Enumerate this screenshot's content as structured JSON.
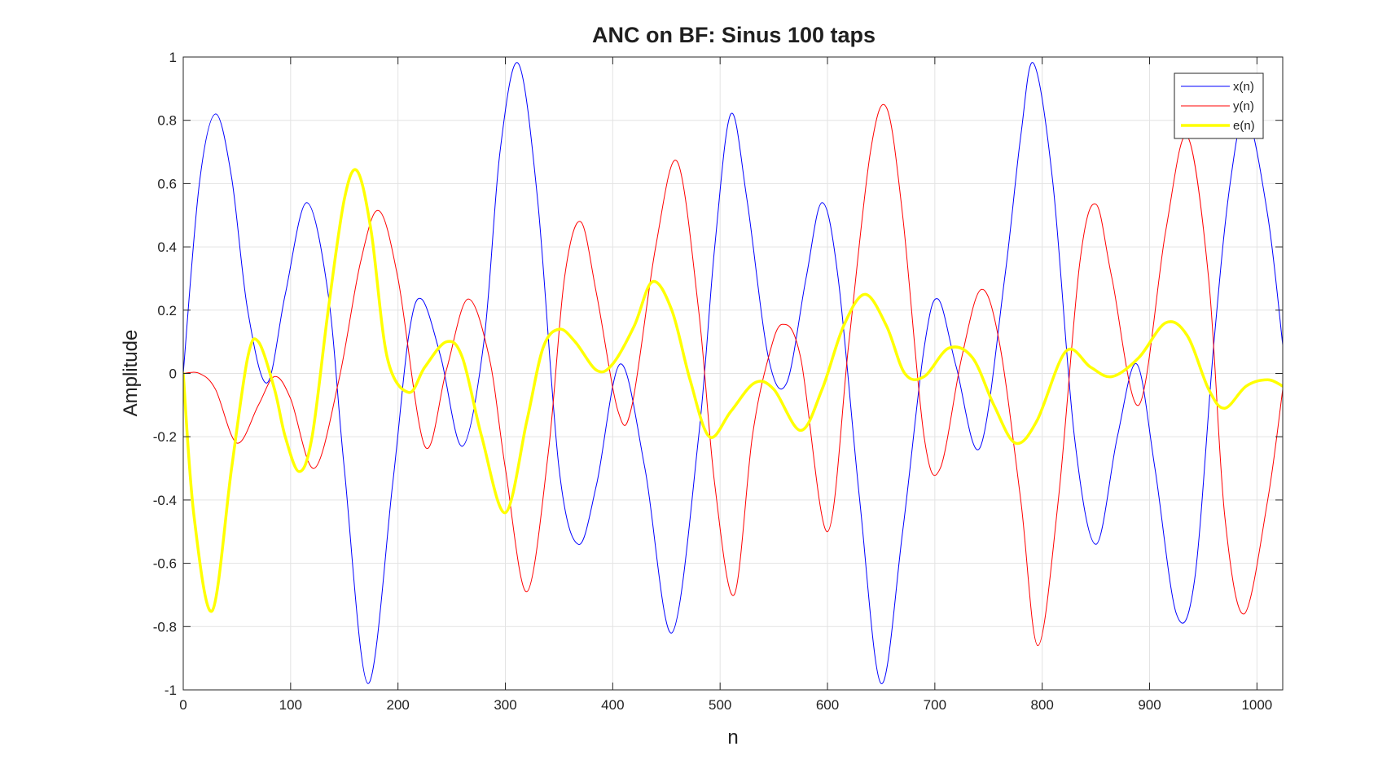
{
  "chart_data": {
    "type": "line",
    "title": "ANC on BF: Sinus 100 taps",
    "xlabel": "n",
    "ylabel": "Amplitude",
    "xlim": [
      0,
      1024
    ],
    "ylim": [
      -1,
      1
    ],
    "grid": true,
    "legend_position": "top-right",
    "x_ticks": [
      0,
      100,
      200,
      300,
      400,
      500,
      600,
      700,
      800,
      900,
      1000
    ],
    "y_ticks": [
      -1,
      -0.8,
      -0.6,
      -0.4,
      -0.2,
      0,
      0.2,
      0.4,
      0.6,
      0.8,
      1
    ],
    "x_tick_labels": [
      "0",
      "100",
      "200",
      "300",
      "400",
      "500",
      "600",
      "700",
      "800",
      "900",
      "1000"
    ],
    "y_tick_labels": [
      "-1",
      "-0.8",
      "-0.6",
      "-0.4",
      "-0.2",
      "0",
      "0.2",
      "0.4",
      "0.6",
      "0.8",
      "1"
    ],
    "series": [
      {
        "name": "x(n)",
        "color": "#0000ff",
        "line_width": 1,
        "x": [
          0,
          15,
          30,
          45,
          60,
          78,
          95,
          115,
          135,
          150,
          172,
          195,
          210,
          222,
          240,
          260,
          280,
          295,
          312,
          330,
          350,
          368,
          385,
          407,
          430,
          455,
          480,
          495,
          510,
          525,
          545,
          562,
          580,
          595,
          610,
          630,
          650,
          670,
          690,
          703,
          720,
          742,
          765,
          780,
          792,
          810,
          830,
          850,
          870,
          888,
          905,
          925,
          942,
          960,
          975,
          990,
          1010,
          1024
        ],
        "y": [
          0,
          0.6,
          0.82,
          0.62,
          0.2,
          -0.03,
          0.25,
          0.54,
          0.25,
          -0.3,
          -0.98,
          -0.35,
          0.12,
          0.235,
          0.05,
          -0.23,
          0.1,
          0.7,
          0.98,
          0.55,
          -0.3,
          -0.54,
          -0.35,
          0.03,
          -0.3,
          -0.82,
          -0.2,
          0.4,
          0.82,
          0.55,
          0.05,
          -0.03,
          0.3,
          0.54,
          0.3,
          -0.4,
          -0.98,
          -0.5,
          0.08,
          0.235,
          0.02,
          -0.235,
          0.3,
          0.75,
          0.98,
          0.6,
          -0.2,
          -0.54,
          -0.2,
          0.03,
          -0.3,
          -0.76,
          -0.65,
          0.1,
          0.6,
          0.82,
          0.5,
          0.09
        ]
      },
      {
        "name": "y(n)",
        "color": "#ff0000",
        "line_width": 1,
        "x": [
          0,
          15,
          30,
          50,
          70,
          85,
          100,
          122,
          145,
          165,
          182,
          200,
          225,
          245,
          265,
          285,
          300,
          320,
          340,
          355,
          370,
          385,
          405,
          418,
          440,
          460,
          480,
          495,
          513,
          530,
          545,
          558,
          575,
          600,
          620,
          640,
          655,
          670,
          690,
          705,
          725,
          743,
          760,
          780,
          796,
          815,
          835,
          850,
          865,
          890,
          915,
          935,
          955,
          970,
          988,
          1010,
          1024
        ],
        "y": [
          0,
          0,
          -0.05,
          -0.22,
          -0.1,
          -0.01,
          -0.08,
          -0.3,
          -0.02,
          0.35,
          0.515,
          0.3,
          -0.23,
          0.01,
          0.235,
          0.05,
          -0.3,
          -0.69,
          -0.25,
          0.3,
          0.48,
          0.25,
          -0.12,
          -0.1,
          0.4,
          0.67,
          0.2,
          -0.35,
          -0.7,
          -0.2,
          0.05,
          0.155,
          0.05,
          -0.5,
          0.1,
          0.7,
          0.84,
          0.5,
          -0.2,
          -0.3,
          0.05,
          0.265,
          0.1,
          -0.4,
          -0.86,
          -0.4,
          0.35,
          0.535,
          0.3,
          -0.1,
          0.45,
          0.75,
          0.3,
          -0.45,
          -0.76,
          -0.4,
          -0.05
        ]
      },
      {
        "name": "e(n)",
        "color": "#ffff00",
        "line_width": 3.5,
        "x": [
          0,
          10,
          27,
          45,
          60,
          70,
          85,
          95,
          108,
          120,
          135,
          150,
          162,
          175,
          190,
          210,
          225,
          245,
          260,
          278,
          300,
          320,
          335,
          350,
          365,
          385,
          400,
          420,
          437,
          455,
          472,
          490,
          510,
          532,
          550,
          575,
          595,
          615,
          635,
          655,
          672,
          690,
          713,
          735,
          755,
          775,
          795,
          822,
          845,
          865,
          890,
          915,
          935,
          955,
          970,
          990,
          1010,
          1024
        ],
        "y": [
          0,
          -0.45,
          -0.75,
          -0.3,
          0.05,
          0.1,
          -0.05,
          -0.2,
          -0.31,
          -0.2,
          0.2,
          0.55,
          0.64,
          0.45,
          0.05,
          -0.06,
          0.02,
          0.1,
          0.05,
          -0.2,
          -0.44,
          -0.15,
          0.08,
          0.14,
          0.1,
          0.01,
          0.03,
          0.15,
          0.29,
          0.2,
          -0.02,
          -0.2,
          -0.12,
          -0.03,
          -0.05,
          -0.18,
          -0.05,
          0.15,
          0.25,
          0.15,
          0.0,
          -0.01,
          0.08,
          0.05,
          -0.1,
          -0.22,
          -0.15,
          0.07,
          0.02,
          -0.01,
          0.05,
          0.16,
          0.12,
          -0.05,
          -0.11,
          -0.04,
          -0.02,
          -0.04
        ]
      }
    ]
  }
}
